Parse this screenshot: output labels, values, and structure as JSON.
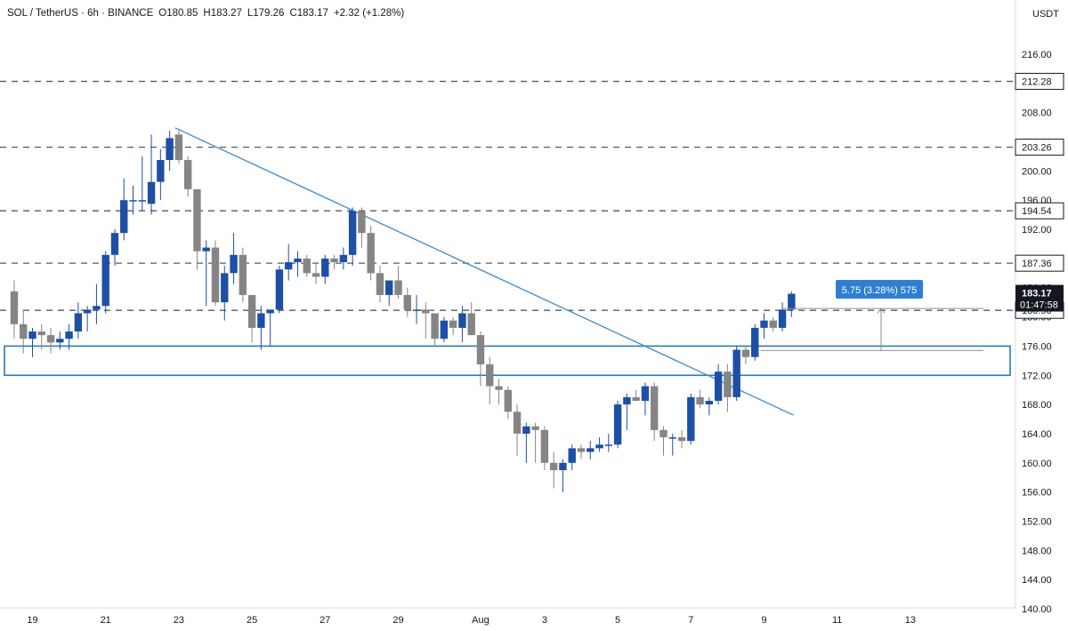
{
  "header": {
    "symbol": "SOL / TetherUS · 6h · BINANCE",
    "open": "O180.85",
    "high": "H183.27",
    "low": "L179.26",
    "close": "C183.17",
    "change": "+2.32 (+1.28%)"
  },
  "axis": {
    "currency_label": "USDT",
    "y_ticks": [
      "216.00",
      "212.00",
      "208.00",
      "204.00",
      "200.00",
      "196.00",
      "192.00",
      "188.00",
      "184.00",
      "180.00",
      "176.00",
      "172.00",
      "168.00",
      "164.00",
      "160.00",
      "156.00",
      "152.00",
      "148.00",
      "144.00",
      "140.00"
    ],
    "x_ticks": [
      "19",
      "21",
      "23",
      "25",
      "27",
      "29",
      "Aug",
      "3",
      "5",
      "7",
      "9",
      "11",
      "13"
    ]
  },
  "price_labels": {
    "current_price": "183.17",
    "countdown": "01:47:58",
    "level_212": "212.28",
    "level_203": "203.26",
    "level_194": "194.54",
    "level_187": "187.36",
    "level_180": "180.90"
  },
  "measure": {
    "label": "5.75 (3.28%) 575"
  },
  "colors": {
    "bull": "#1e4fa6",
    "bear": "#858585",
    "trendline": "#4a90c8",
    "zone_border": "#2a7ab8",
    "measure_label_bg": "#2f7fd0",
    "price_tag_bg": "#131722",
    "grid_text": "#131722"
  },
  "chart_data": {
    "type": "candlestick",
    "symbol": "SOL/USDT",
    "timeframe": "6h",
    "exchange": "BINANCE",
    "ylim": [
      140,
      220
    ],
    "y_scale": "linear",
    "horizontal_levels": [
      212.28,
      203.26,
      194.54,
      187.36,
      180.9
    ],
    "support_zone": [
      172.0,
      176.0
    ],
    "trendline": [
      [
        22.9,
        205.9
      ],
      [
        8.8,
        170.2
      ]
    ],
    "candles": [
      {
        "d": 18.5,
        "o": 183.5,
        "h": 185,
        "l": 177,
        "c": 179
      },
      {
        "d": 18.75,
        "o": 179,
        "h": 181,
        "l": 175,
        "c": 177
      },
      {
        "d": 19.0,
        "o": 177,
        "h": 178.5,
        "l": 174.5,
        "c": 178
      },
      {
        "d": 19.25,
        "o": 178,
        "h": 179,
        "l": 175.5,
        "c": 177.5
      },
      {
        "d": 19.5,
        "o": 177.5,
        "h": 178.5,
        "l": 175,
        "c": 176.5
      },
      {
        "d": 19.75,
        "o": 176.5,
        "h": 178,
        "l": 175.5,
        "c": 177
      },
      {
        "d": 20.0,
        "o": 177,
        "h": 179,
        "l": 175.5,
        "c": 178
      },
      {
        "d": 20.25,
        "o": 178,
        "h": 182,
        "l": 177,
        "c": 180.5
      },
      {
        "d": 20.5,
        "o": 180.5,
        "h": 181.5,
        "l": 178,
        "c": 181
      },
      {
        "d": 20.75,
        "o": 181,
        "h": 184.5,
        "l": 179,
        "c": 181.5
      },
      {
        "d": 21.0,
        "o": 181.5,
        "h": 189,
        "l": 180.5,
        "c": 188.5
      },
      {
        "d": 21.25,
        "o": 188.5,
        "h": 192,
        "l": 187,
        "c": 191.5
      },
      {
        "d": 21.5,
        "o": 191.5,
        "h": 199,
        "l": 190.5,
        "c": 196
      },
      {
        "d": 21.75,
        "o": 196,
        "h": 198,
        "l": 194,
        "c": 196
      },
      {
        "d": 22.0,
        "o": 196,
        "h": 202,
        "l": 194.5,
        "c": 196
      },
      {
        "d": 22.25,
        "o": 195.5,
        "h": 205,
        "l": 194,
        "c": 198.5
      },
      {
        "d": 22.5,
        "o": 198.5,
        "h": 203,
        "l": 196,
        "c": 201.5
      },
      {
        "d": 22.75,
        "o": 201.5,
        "h": 205.5,
        "l": 200,
        "c": 204.5
      },
      {
        "d": 23.0,
        "o": 205,
        "h": 205.5,
        "l": 201,
        "c": 201.5
      },
      {
        "d": 23.25,
        "o": 201.5,
        "h": 202,
        "l": 196.5,
        "c": 197.5
      },
      {
        "d": 23.5,
        "o": 197.5,
        "h": 197.5,
        "l": 186.5,
        "c": 189
      },
      {
        "d": 23.75,
        "o": 189,
        "h": 190.5,
        "l": 181.5,
        "c": 189.5
      },
      {
        "d": 24.0,
        "o": 189.5,
        "h": 190.5,
        "l": 181.5,
        "c": 182
      },
      {
        "d": 24.25,
        "o": 182,
        "h": 187,
        "l": 179.5,
        "c": 186
      },
      {
        "d": 24.5,
        "o": 186,
        "h": 191.5,
        "l": 184.5,
        "c": 188.5
      },
      {
        "d": 24.75,
        "o": 188.5,
        "h": 189.5,
        "l": 182,
        "c": 183
      },
      {
        "d": 25.0,
        "o": 183,
        "h": 183,
        "l": 176.5,
        "c": 178.5
      },
      {
        "d": 25.25,
        "o": 178.5,
        "h": 181.5,
        "l": 175.5,
        "c": 180.5
      },
      {
        "d": 25.5,
        "o": 180.5,
        "h": 181,
        "l": 176,
        "c": 181
      },
      {
        "d": 25.75,
        "o": 181,
        "h": 187,
        "l": 180.5,
        "c": 186.5
      },
      {
        "d": 26.0,
        "o": 186.5,
        "h": 190,
        "l": 185,
        "c": 187.5
      },
      {
        "d": 26.25,
        "o": 187.5,
        "h": 189,
        "l": 185.5,
        "c": 188
      },
      {
        "d": 26.5,
        "o": 188,
        "h": 188.5,
        "l": 185.5,
        "c": 186
      },
      {
        "d": 26.75,
        "o": 186,
        "h": 187.5,
        "l": 184.5,
        "c": 185.5
      },
      {
        "d": 27.0,
        "o": 185.5,
        "h": 188.5,
        "l": 184.5,
        "c": 188
      },
      {
        "d": 27.25,
        "o": 188,
        "h": 188.5,
        "l": 186.5,
        "c": 187.5
      },
      {
        "d": 27.5,
        "o": 187.5,
        "h": 189.5,
        "l": 186.5,
        "c": 188.5
      },
      {
        "d": 27.75,
        "o": 188.5,
        "h": 195,
        "l": 187,
        "c": 194.5
      },
      {
        "d": 28.0,
        "o": 194.5,
        "h": 195,
        "l": 189.5,
        "c": 191.5
      },
      {
        "d": 28.25,
        "o": 191.5,
        "h": 192.5,
        "l": 185,
        "c": 186
      },
      {
        "d": 28.5,
        "o": 186,
        "h": 187,
        "l": 182,
        "c": 183
      },
      {
        "d": 28.75,
        "o": 183,
        "h": 185,
        "l": 181.5,
        "c": 185
      },
      {
        "d": 29.0,
        "o": 185,
        "h": 187,
        "l": 182.5,
        "c": 183
      },
      {
        "d": 29.25,
        "o": 183,
        "h": 184,
        "l": 180,
        "c": 181
      },
      {
        "d": 29.5,
        "o": 181,
        "h": 183,
        "l": 179,
        "c": 181
      },
      {
        "d": 29.75,
        "o": 181,
        "h": 182,
        "l": 177,
        "c": 180.5
      },
      {
        "d": 30.0,
        "o": 180.5,
        "h": 180.5,
        "l": 176,
        "c": 177
      },
      {
        "d": 30.25,
        "o": 177,
        "h": 180,
        "l": 176.5,
        "c": 179.5
      },
      {
        "d": 30.5,
        "o": 179.5,
        "h": 180,
        "l": 177.5,
        "c": 178.5
      },
      {
        "d": 30.75,
        "o": 178.5,
        "h": 181.5,
        "l": 176.5,
        "c": 180.5
      },
      {
        "d": 31.0,
        "o": 180.5,
        "h": 182,
        "l": 177.5,
        "c": 177.5
      },
      {
        "d": 31.25,
        "o": 177.5,
        "h": 178,
        "l": 170.5,
        "c": 173.5
      },
      {
        "d": 31.5,
        "o": 173.5,
        "h": 174.5,
        "l": 168,
        "c": 170.5
      },
      {
        "d": 31.75,
        "o": 170.5,
        "h": 171.5,
        "l": 168,
        "c": 170
      },
      {
        "d": 32.0,
        "o": 170,
        "h": 170.5,
        "l": 166,
        "c": 167
      },
      {
        "d": 32.25,
        "o": 167,
        "h": 168,
        "l": 161,
        "c": 164
      },
      {
        "d": 32.5,
        "o": 164,
        "h": 165.5,
        "l": 160,
        "c": 165
      },
      {
        "d": 32.75,
        "o": 165,
        "h": 165.5,
        "l": 160,
        "c": 164.5
      },
      {
        "d": 33.0,
        "o": 164.5,
        "h": 165,
        "l": 159,
        "c": 160
      },
      {
        "d": 33.25,
        "o": 160,
        "h": 161.5,
        "l": 156.5,
        "c": 159
      },
      {
        "d": 33.5,
        "o": 159,
        "h": 160.5,
        "l": 156,
        "c": 160
      },
      {
        "d": 33.75,
        "o": 160,
        "h": 162.5,
        "l": 159,
        "c": 162
      },
      {
        "d": 34.0,
        "o": 162,
        "h": 162.5,
        "l": 160.5,
        "c": 161.5
      },
      {
        "d": 34.25,
        "o": 161.5,
        "h": 163,
        "l": 160.5,
        "c": 162
      },
      {
        "d": 34.5,
        "o": 162,
        "h": 163.5,
        "l": 161.5,
        "c": 162.5
      },
      {
        "d": 34.75,
        "o": 162.5,
        "h": 164,
        "l": 161.5,
        "c": 162.5
      },
      {
        "d": 35.0,
        "o": 162.5,
        "h": 168.5,
        "l": 162,
        "c": 168
      },
      {
        "d": 35.25,
        "o": 168,
        "h": 169.5,
        "l": 164.5,
        "c": 169
      },
      {
        "d": 35.5,
        "o": 169,
        "h": 170,
        "l": 168.5,
        "c": 168.5
      },
      {
        "d": 35.75,
        "o": 168.5,
        "h": 171,
        "l": 166.5,
        "c": 170.5
      },
      {
        "d": 36.0,
        "o": 170.5,
        "h": 171,
        "l": 163,
        "c": 164.5
      },
      {
        "d": 36.25,
        "o": 164.5,
        "h": 165,
        "l": 161,
        "c": 163.5
      },
      {
        "d": 36.5,
        "o": 163.5,
        "h": 164,
        "l": 161,
        "c": 163.5
      },
      {
        "d": 36.75,
        "o": 163.5,
        "h": 164.5,
        "l": 162,
        "c": 163
      },
      {
        "d": 37.0,
        "o": 163,
        "h": 169.5,
        "l": 162.5,
        "c": 169
      },
      {
        "d": 37.25,
        "o": 169,
        "h": 170,
        "l": 167.5,
        "c": 168
      },
      {
        "d": 37.5,
        "o": 168,
        "h": 169,
        "l": 166.5,
        "c": 168.5
      },
      {
        "d": 37.75,
        "o": 168.5,
        "h": 173.5,
        "l": 168,
        "c": 172.5
      },
      {
        "d": 38.0,
        "o": 172.5,
        "h": 173.5,
        "l": 167,
        "c": 169
      },
      {
        "d": 38.25,
        "o": 169,
        "h": 176,
        "l": 168.5,
        "c": 175.5
      },
      {
        "d": 38.5,
        "o": 175.5,
        "h": 176,
        "l": 173.5,
        "c": 174.5
      },
      {
        "d": 38.75,
        "o": 174.5,
        "h": 179,
        "l": 174,
        "c": 178.5
      },
      {
        "d": 39.0,
        "o": 178.5,
        "h": 180.5,
        "l": 177,
        "c": 179.5
      },
      {
        "d": 39.25,
        "o": 179.5,
        "h": 180,
        "l": 178,
        "c": 178.5
      },
      {
        "d": 39.5,
        "o": 178.5,
        "h": 182,
        "l": 178,
        "c": 181
      },
      {
        "d": 39.75,
        "o": 181,
        "h": 183.5,
        "l": 180,
        "c": 183.17
      }
    ]
  }
}
